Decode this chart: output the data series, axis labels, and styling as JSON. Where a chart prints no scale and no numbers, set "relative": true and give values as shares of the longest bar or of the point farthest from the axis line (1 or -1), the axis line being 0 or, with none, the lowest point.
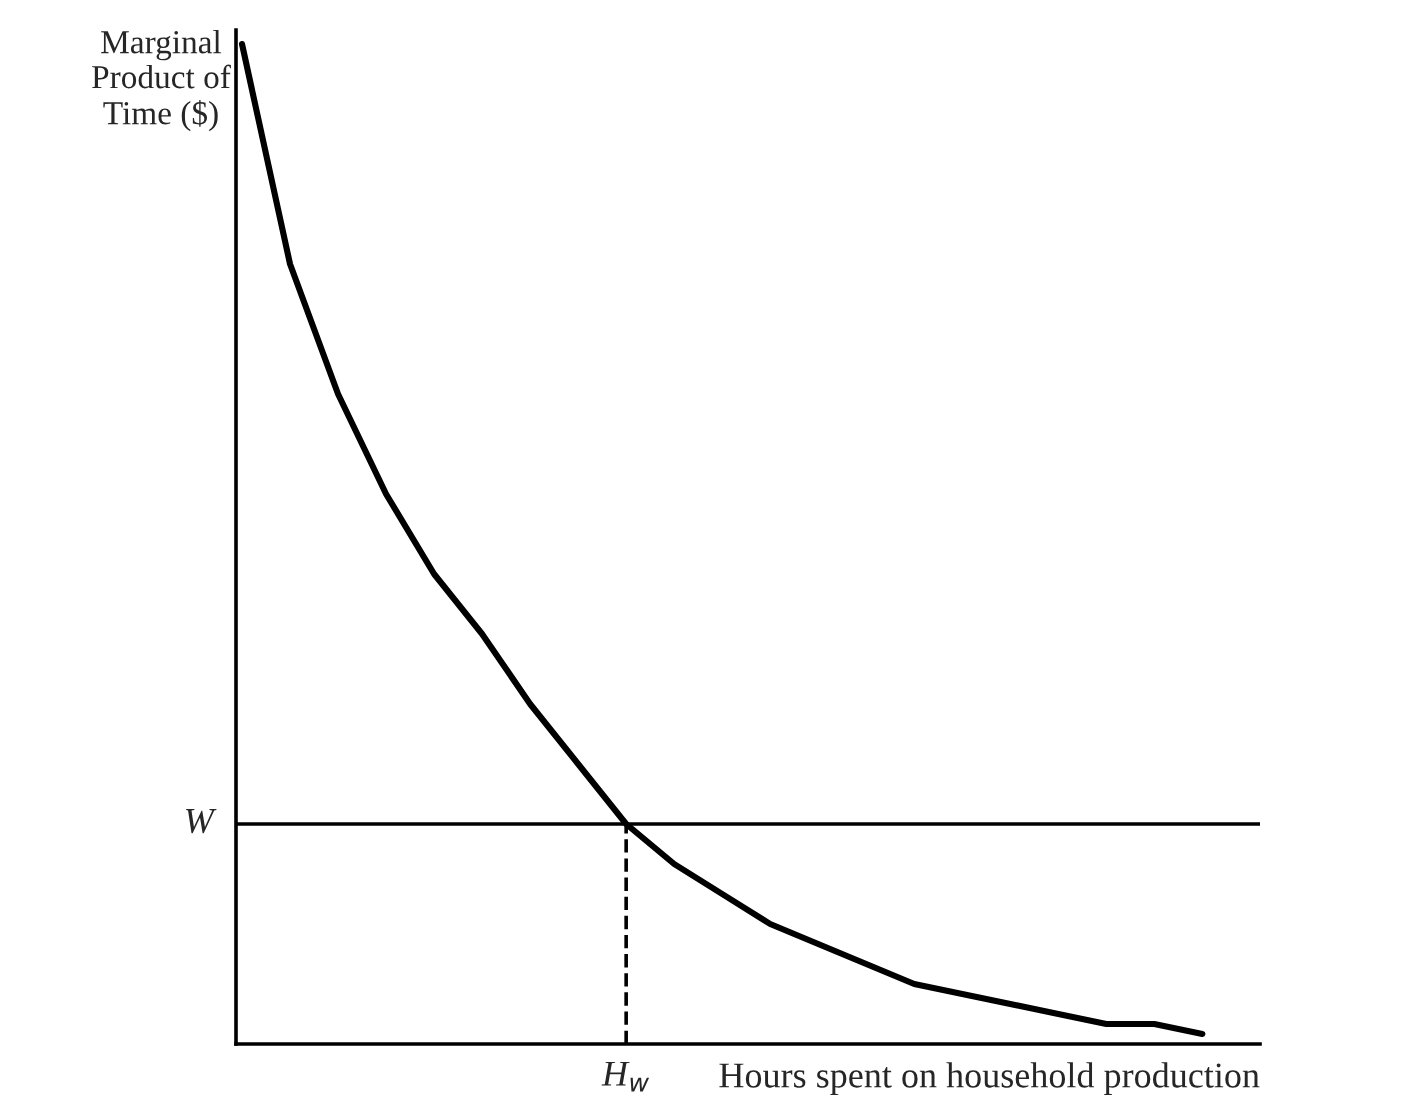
{
  "chart_data": {
    "type": "line",
    "relative": true,
    "ylabel": "Marginal\nProduct of\nTime ($)",
    "xlabel": "Hours spent on household production",
    "categories": [
      null,
      null,
      null,
      null,
      null,
      null,
      null,
      null,
      null,
      null,
      null,
      null,
      null,
      null,
      null,
      null,
      null,
      null,
      null,
      null,
      null
    ],
    "series": [
      {
        "color": "#000000",
        "values": [
          1.0,
          0.78,
          0.65,
          0.55,
          0.47,
          0.41,
          0.34,
          0.28,
          0.22,
          0.18,
          0.15,
          0.12,
          0.1,
          0.08,
          0.06,
          0.05,
          0.04,
          0.03,
          0.02,
          0.02,
          0.01
        ]
      }
    ],
    "ref_lines": [
      {
        "axis": "y",
        "value": 0.22,
        "label": "W",
        "color": "#000000",
        "line_style": "solid"
      }
    ],
    "annotations": [
      "H$_{w}$"
    ],
    "legend": false,
    "marker": "none",
    "line_style": "solid"
  }
}
